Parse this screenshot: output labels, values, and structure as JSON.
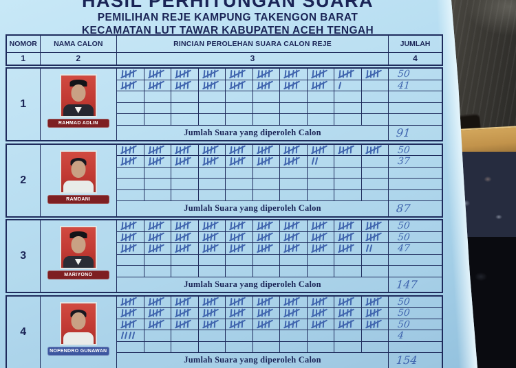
{
  "theme": {
    "border": "#1e2b5c",
    "ink": "#1a2456",
    "pen": "#4065ae",
    "photo_bg": "#c13a33",
    "plate_red": "#7e1f22",
    "poster_bg": "#b2d9ed"
  },
  "title": {
    "line1": "HASIL PERHITUNGAN SUARA",
    "line2": "PEMILIHAN REJE KAMPUNG TAKENGON BARAT",
    "line3": "KECAMATAN LUT TAWAR KABUPATEN ACEH TENGAH"
  },
  "table": {
    "headers": {
      "nomor": "NOMOR",
      "nama": "NAMA CALON",
      "rincian": "RINCIAN PEROLEHAN SUARA CALON REJE",
      "jumlah": "JUMLAH"
    },
    "column_numbers": {
      "c1": "1",
      "c2": "2",
      "c3": "3",
      "c4": "4"
    },
    "summary_label": "Jumlah Suara yang diperoleh Calon"
  },
  "candidates": [
    {
      "number": "1",
      "name": "RAHMAD ADLIN",
      "plate_color": "#7e1f22",
      "has_cap": true,
      "torso_color": "#262730",
      "tally_rows": [
        [
          5,
          5,
          5,
          5,
          5,
          5,
          5,
          5,
          5,
          5
        ],
        [
          5,
          5,
          5,
          5,
          5,
          5,
          5,
          5,
          1,
          0
        ],
        [
          0,
          0,
          0,
          0,
          0,
          0,
          0,
          0,
          0,
          0
        ],
        [
          0,
          0,
          0,
          0,
          0,
          0,
          0,
          0,
          0,
          0
        ],
        [
          0,
          0,
          0,
          0,
          0,
          0,
          0,
          0,
          0,
          0
        ]
      ],
      "row_totals": [
        "50",
        "41",
        "",
        "",
        ""
      ],
      "total": "91"
    },
    {
      "number": "2",
      "name": "RAMDANI",
      "plate_color": "#7e1f22",
      "has_cap": false,
      "torso_color": "#e8ece9",
      "tally_rows": [
        [
          5,
          5,
          5,
          5,
          5,
          5,
          5,
          5,
          5,
          5
        ],
        [
          5,
          5,
          5,
          5,
          5,
          5,
          5,
          2,
          0,
          0
        ],
        [
          0,
          0,
          0,
          0,
          0,
          0,
          0,
          0,
          0,
          0
        ],
        [
          0,
          0,
          0,
          0,
          0,
          0,
          0,
          0,
          0,
          0
        ],
        [
          0,
          0,
          0,
          0,
          0,
          0,
          0,
          0,
          0,
          0
        ]
      ],
      "row_totals": [
        "50",
        "37",
        "",
        "",
        ""
      ],
      "total": "87"
    },
    {
      "number": "3",
      "name": "MARIYONO",
      "plate_color": "#7e1f22",
      "has_cap": true,
      "torso_color": "#2b2c35",
      "tally_rows": [
        [
          5,
          5,
          5,
          5,
          5,
          5,
          5,
          5,
          5,
          5
        ],
        [
          5,
          5,
          5,
          5,
          5,
          5,
          5,
          5,
          5,
          5
        ],
        [
          5,
          5,
          5,
          5,
          5,
          5,
          5,
          5,
          5,
          2
        ],
        [
          0,
          0,
          0,
          0,
          0,
          0,
          0,
          0,
          0,
          0
        ],
        [
          0,
          0,
          0,
          0,
          0,
          0,
          0,
          0,
          0,
          0
        ]
      ],
      "row_totals": [
        "50",
        "50",
        "47",
        "",
        ""
      ],
      "total": "147"
    },
    {
      "number": "4",
      "name": "NOFENDRO GUNAWAN",
      "plate_color": "#3d57a0",
      "has_cap": false,
      "torso_color": "#e9ece9",
      "tally_rows": [
        [
          5,
          5,
          5,
          5,
          5,
          5,
          5,
          5,
          5,
          5
        ],
        [
          5,
          5,
          5,
          5,
          5,
          5,
          5,
          5,
          5,
          5
        ],
        [
          5,
          5,
          5,
          5,
          5,
          5,
          5,
          5,
          5,
          5
        ],
        [
          4,
          0,
          0,
          0,
          0,
          0,
          0,
          0,
          0,
          0
        ],
        [
          0,
          0,
          0,
          0,
          0,
          0,
          0,
          0,
          0,
          0
        ]
      ],
      "row_totals": [
        "50",
        "50",
        "50",
        "4",
        ""
      ],
      "total": "154"
    }
  ]
}
